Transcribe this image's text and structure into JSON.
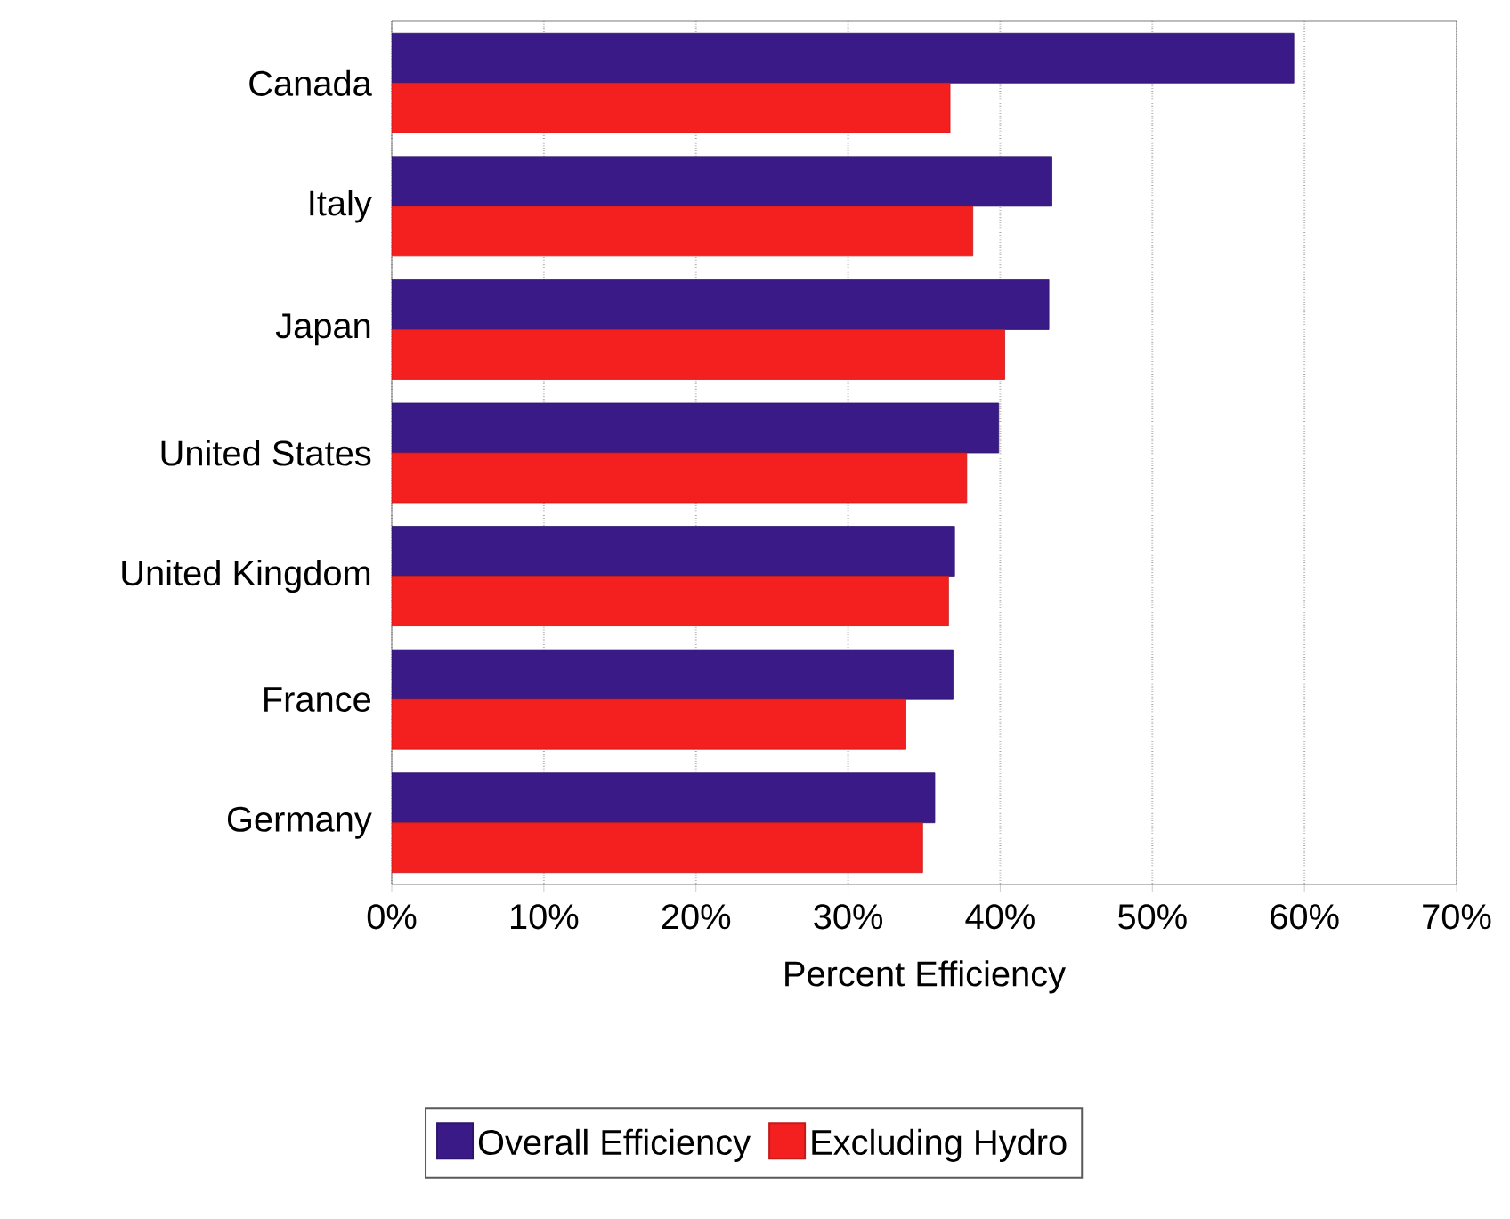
{
  "chart_data": {
    "type": "bar",
    "orientation": "horizontal",
    "xlabel": "Percent Efficiency",
    "categories": [
      "Canada",
      "Italy",
      "Japan",
      "United States",
      "United Kingdom",
      "France",
      "Germany"
    ],
    "series": [
      {
        "name": "Overall Efficiency",
        "color": "#3a1a86",
        "values": [
          59.3,
          43.4,
          43.2,
          39.9,
          37.0,
          36.9,
          35.7
        ]
      },
      {
        "name": "Excluding Hydro",
        "color": "#f42020",
        "values": [
          36.7,
          38.2,
          40.3,
          37.8,
          36.6,
          33.8,
          34.9
        ]
      }
    ],
    "xlim": [
      0,
      70
    ],
    "xticks": [
      {
        "value": 0,
        "label": "0%"
      },
      {
        "value": 10,
        "label": "10%"
      },
      {
        "value": 20,
        "label": "20%"
      },
      {
        "value": 30,
        "label": "30%"
      },
      {
        "value": 40,
        "label": "40%"
      },
      {
        "value": 50,
        "label": "50%"
      },
      {
        "value": 60,
        "label": "60%"
      },
      {
        "value": 70,
        "label": "70%"
      }
    ],
    "grid": "x",
    "legend": "bottom"
  }
}
